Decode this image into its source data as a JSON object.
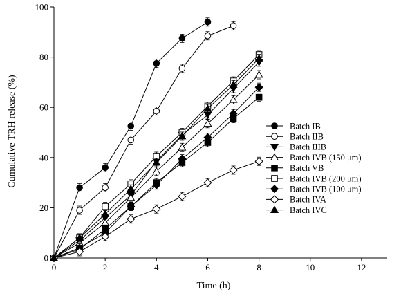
{
  "chart_data": {
    "type": "scatter",
    "xlabel": "Time (h)",
    "ylabel": "Cumulative TRH release (%)",
    "xlim": [
      0,
      13
    ],
    "ylim": [
      0,
      100
    ],
    "x_ticks": [
      "0",
      "2",
      "4",
      "6",
      "8",
      "10",
      "12"
    ],
    "y_ticks": [
      "0",
      "20",
      "40",
      "60",
      "80",
      "100"
    ],
    "grid": false,
    "legend_position": "right",
    "series": [
      {
        "name": "Batch IB",
        "marker": "circle-filled",
        "x": [
          0,
          1,
          2,
          3,
          4,
          5,
          6
        ],
        "y": [
          0,
          28,
          36,
          52.5,
          77.5,
          87.5,
          94
        ]
      },
      {
        "name": "Batch IIB",
        "marker": "circle-open",
        "x": [
          0,
          1,
          2,
          3,
          4,
          5,
          6,
          7
        ],
        "y": [
          0,
          19,
          28,
          47,
          58.5,
          75.5,
          88.5,
          92.5
        ]
      },
      {
        "name": "Batch IIIB",
        "marker": "triangle-down-filled",
        "x": [
          0,
          1,
          2,
          3,
          4,
          5,
          6,
          7,
          8
        ],
        "y": [
          0,
          7,
          16,
          25,
          38.5,
          49,
          57,
          67.5,
          78
        ]
      },
      {
        "name": "Batch IVB (150 μm)",
        "marker": "triangle-up-open",
        "x": [
          0,
          1,
          2,
          3,
          4,
          5,
          6,
          7,
          8
        ],
        "y": [
          0,
          6,
          14,
          24,
          34.5,
          44,
          53.5,
          63,
          73
        ]
      },
      {
        "name": "Batch VB",
        "marker": "square-filled",
        "x": [
          0,
          1,
          2,
          3,
          4,
          5,
          6,
          7,
          8
        ],
        "y": [
          0,
          3.5,
          11.5,
          20.5,
          30,
          38,
          46,
          55.5,
          64
        ]
      },
      {
        "name": "Batch IVB (200 μm)",
        "marker": "square-open",
        "x": [
          0,
          1,
          2,
          3,
          4,
          5,
          6,
          7,
          8
        ],
        "y": [
          0,
          8,
          20.5,
          29.5,
          40.5,
          50,
          60.5,
          70.5,
          81
        ]
      },
      {
        "name": "Batch IVB (100 μm)",
        "marker": "diamond-filled",
        "x": [
          0,
          1,
          2,
          3,
          4,
          5,
          6,
          7,
          8
        ],
        "y": [
          0,
          4,
          10,
          20.5,
          29,
          39.5,
          48,
          57.5,
          68
        ]
      },
      {
        "name": "Batch IVA",
        "marker": "diamond-open",
        "x": [
          0,
          1,
          2,
          3,
          4,
          5,
          6,
          7,
          8
        ],
        "y": [
          0,
          2.5,
          8.5,
          15.5,
          19.5,
          24.5,
          30,
          35,
          38.5
        ]
      },
      {
        "name": "Batch IVC",
        "marker": "triangle-up-filled",
        "x": [
          0,
          1,
          2,
          3,
          4,
          5,
          6,
          7,
          8
        ],
        "y": [
          0,
          8,
          17.5,
          27.5,
          38,
          48.5,
          59.5,
          69,
          79.5
        ]
      }
    ]
  }
}
